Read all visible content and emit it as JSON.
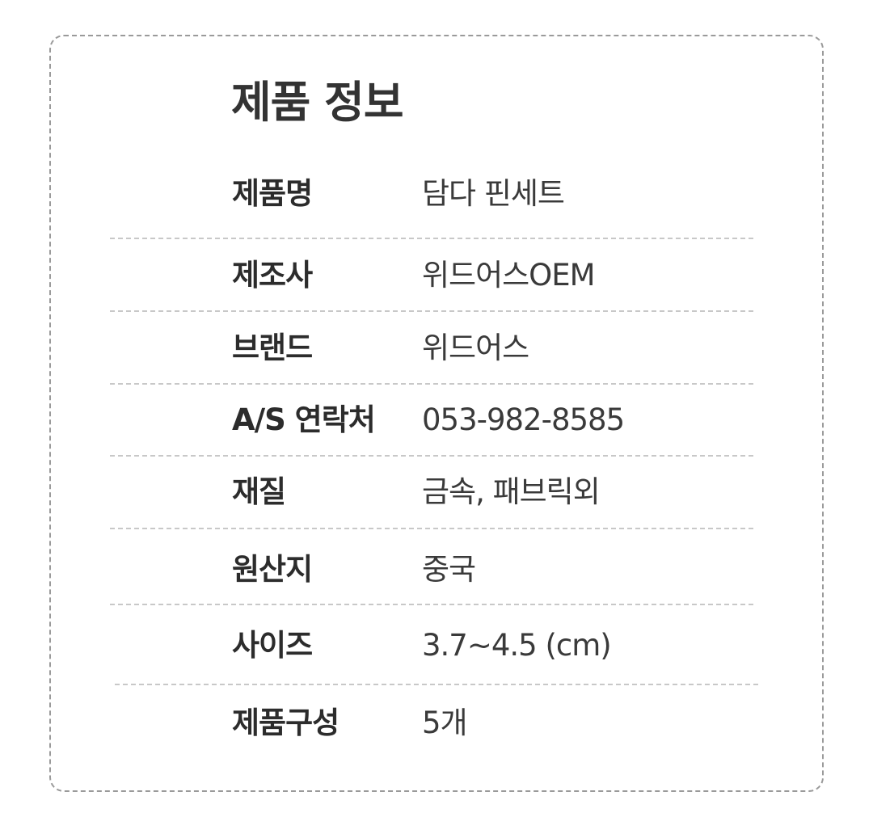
{
  "title": "제품 정보",
  "rows": [
    {
      "label": "제품명",
      "value": "담다 핀세트"
    },
    {
      "label": "제조사",
      "value": "위드어스OEM"
    },
    {
      "label": "브랜드",
      "value": "위드어스"
    },
    {
      "label": "A/S 연락처",
      "value": "053-982-8585"
    },
    {
      "label": "재질",
      "value": "금속, 패브릭외"
    },
    {
      "label": "원산지",
      "value": "중국"
    },
    {
      "label": "사이즈",
      "value": "3.7~4.5 (cm)"
    },
    {
      "label": "제품구성",
      "value": "5개"
    }
  ],
  "colors": {
    "border": "#9a9a9a",
    "divider": "#c8c8c8",
    "text": "#2f2f2f"
  }
}
